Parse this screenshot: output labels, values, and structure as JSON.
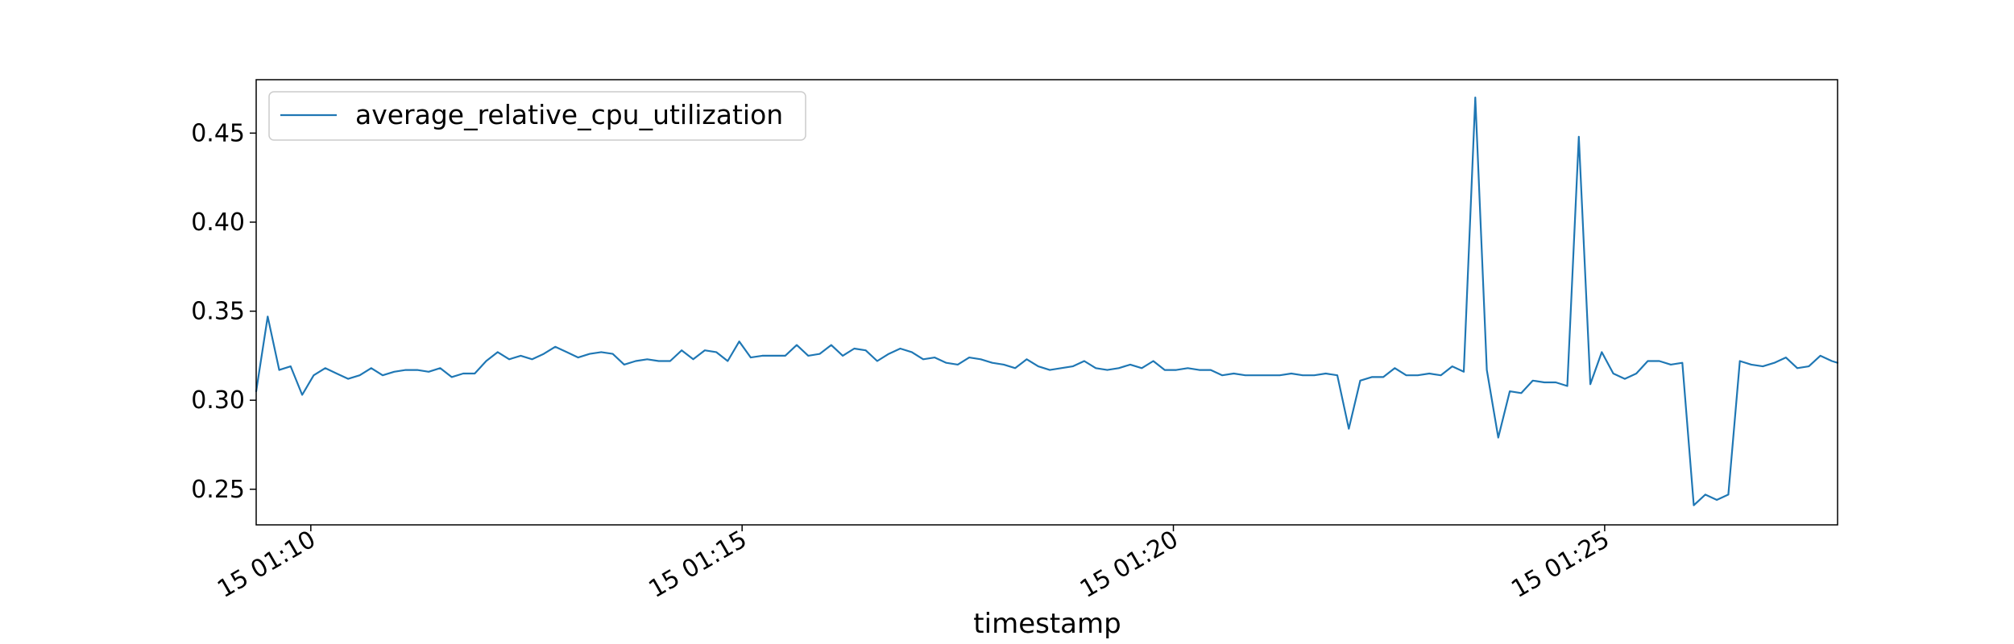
{
  "chart_data": {
    "type": "line",
    "title": "",
    "xlabel": "timestamp",
    "ylabel": "",
    "xlim": [
      "15 01:09:22",
      "15 01:27:42"
    ],
    "ylim": [
      0.23,
      0.48
    ],
    "x_ticks": [
      {
        "value": "15 01:10:00",
        "label": "15 01:10"
      },
      {
        "value": "15 01:15:00",
        "label": "15 01:15"
      },
      {
        "value": "15 01:20:00",
        "label": "15 01:20"
      },
      {
        "value": "15 01:25:00",
        "label": "15 01:25"
      }
    ],
    "y_ticks": [
      {
        "value": 0.25,
        "label": "0.25"
      },
      {
        "value": 0.3,
        "label": "0.30"
      },
      {
        "value": 0.35,
        "label": "0.35"
      },
      {
        "value": 0.4,
        "label": "0.40"
      },
      {
        "value": 0.45,
        "label": "0.45"
      }
    ],
    "grid": false,
    "legend_position": "top-left",
    "series": [
      {
        "name": "average_relative_cpu_utilization",
        "color": "#1f77b4",
        "points": [
          [
            "15 01:09:22",
            0.305
          ],
          [
            "15 01:09:30",
            0.347
          ],
          [
            "15 01:09:38",
            0.317
          ],
          [
            "15 01:09:46",
            0.319
          ],
          [
            "15 01:09:54",
            0.303
          ],
          [
            "15 01:10:02",
            0.314
          ],
          [
            "15 01:10:10",
            0.318
          ],
          [
            "15 01:10:18",
            0.315
          ],
          [
            "15 01:10:26",
            0.312
          ],
          [
            "15 01:10:34",
            0.314
          ],
          [
            "15 01:10:42",
            0.318
          ],
          [
            "15 01:10:50",
            0.314
          ],
          [
            "15 01:10:58",
            0.316
          ],
          [
            "15 01:11:06",
            0.317
          ],
          [
            "15 01:11:14",
            0.317
          ],
          [
            "15 01:11:22",
            0.316
          ],
          [
            "15 01:11:30",
            0.318
          ],
          [
            "15 01:11:38",
            0.313
          ],
          [
            "15 01:11:46",
            0.315
          ],
          [
            "15 01:11:54",
            0.315
          ],
          [
            "15 01:12:02",
            0.322
          ],
          [
            "15 01:12:10",
            0.327
          ],
          [
            "15 01:12:18",
            0.323
          ],
          [
            "15 01:12:26",
            0.325
          ],
          [
            "15 01:12:34",
            0.323
          ],
          [
            "15 01:12:42",
            0.326
          ],
          [
            "15 01:12:50",
            0.33
          ],
          [
            "15 01:12:58",
            0.327
          ],
          [
            "15 01:13:06",
            0.324
          ],
          [
            "15 01:13:14",
            0.326
          ],
          [
            "15 01:13:22",
            0.327
          ],
          [
            "15 01:13:30",
            0.326
          ],
          [
            "15 01:13:38",
            0.32
          ],
          [
            "15 01:13:46",
            0.322
          ],
          [
            "15 01:13:54",
            0.323
          ],
          [
            "15 01:14:02",
            0.322
          ],
          [
            "15 01:14:10",
            0.322
          ],
          [
            "15 01:14:18",
            0.328
          ],
          [
            "15 01:14:26",
            0.323
          ],
          [
            "15 01:14:34",
            0.328
          ],
          [
            "15 01:14:42",
            0.327
          ],
          [
            "15 01:14:50",
            0.322
          ],
          [
            "15 01:14:58",
            0.333
          ],
          [
            "15 01:15:06",
            0.324
          ],
          [
            "15 01:15:14",
            0.325
          ],
          [
            "15 01:15:22",
            0.325
          ],
          [
            "15 01:15:30",
            0.325
          ],
          [
            "15 01:15:38",
            0.331
          ],
          [
            "15 01:15:46",
            0.325
          ],
          [
            "15 01:15:54",
            0.326
          ],
          [
            "15 01:16:02",
            0.331
          ],
          [
            "15 01:16:10",
            0.325
          ],
          [
            "15 01:16:18",
            0.329
          ],
          [
            "15 01:16:26",
            0.328
          ],
          [
            "15 01:16:34",
            0.322
          ],
          [
            "15 01:16:42",
            0.326
          ],
          [
            "15 01:16:50",
            0.329
          ],
          [
            "15 01:16:58",
            0.327
          ],
          [
            "15 01:17:06",
            0.323
          ],
          [
            "15 01:17:14",
            0.324
          ],
          [
            "15 01:17:22",
            0.321
          ],
          [
            "15 01:17:30",
            0.32
          ],
          [
            "15 01:17:38",
            0.324
          ],
          [
            "15 01:17:46",
            0.323
          ],
          [
            "15 01:17:54",
            0.321
          ],
          [
            "15 01:18:02",
            0.32
          ],
          [
            "15 01:18:10",
            0.318
          ],
          [
            "15 01:18:18",
            0.323
          ],
          [
            "15 01:18:26",
            0.319
          ],
          [
            "15 01:18:34",
            0.317
          ],
          [
            "15 01:18:42",
            0.318
          ],
          [
            "15 01:18:50",
            0.319
          ],
          [
            "15 01:18:58",
            0.322
          ],
          [
            "15 01:19:06",
            0.318
          ],
          [
            "15 01:19:14",
            0.317
          ],
          [
            "15 01:19:22",
            0.318
          ],
          [
            "15 01:19:30",
            0.32
          ],
          [
            "15 01:19:38",
            0.318
          ],
          [
            "15 01:19:46",
            0.322
          ],
          [
            "15 01:19:54",
            0.317
          ],
          [
            "15 01:20:02",
            0.317
          ],
          [
            "15 01:20:10",
            0.318
          ],
          [
            "15 01:20:18",
            0.317
          ],
          [
            "15 01:20:26",
            0.317
          ],
          [
            "15 01:20:34",
            0.314
          ],
          [
            "15 01:20:42",
            0.315
          ],
          [
            "15 01:20:50",
            0.314
          ],
          [
            "15 01:20:58",
            0.314
          ],
          [
            "15 01:21:06",
            0.314
          ],
          [
            "15 01:21:14",
            0.314
          ],
          [
            "15 01:21:22",
            0.315
          ],
          [
            "15 01:21:30",
            0.314
          ],
          [
            "15 01:21:38",
            0.314
          ],
          [
            "15 01:21:46",
            0.315
          ],
          [
            "15 01:21:54",
            0.314
          ],
          [
            "15 01:22:02",
            0.284
          ],
          [
            "15 01:22:10",
            0.311
          ],
          [
            "15 01:22:18",
            0.313
          ],
          [
            "15 01:22:26",
            0.313
          ],
          [
            "15 01:22:34",
            0.318
          ],
          [
            "15 01:22:42",
            0.314
          ],
          [
            "15 01:22:50",
            0.314
          ],
          [
            "15 01:22:58",
            0.315
          ],
          [
            "15 01:23:06",
            0.314
          ],
          [
            "15 01:23:14",
            0.319
          ],
          [
            "15 01:23:22",
            0.316
          ],
          [
            "15 01:23:30",
            0.47
          ],
          [
            "15 01:23:38",
            0.317
          ],
          [
            "15 01:23:46",
            0.279
          ],
          [
            "15 01:23:54",
            0.305
          ],
          [
            "15 01:24:02",
            0.304
          ],
          [
            "15 01:24:10",
            0.311
          ],
          [
            "15 01:24:18",
            0.31
          ],
          [
            "15 01:24:26",
            0.31
          ],
          [
            "15 01:24:34",
            0.308
          ],
          [
            "15 01:24:42",
            0.448
          ],
          [
            "15 01:24:50",
            0.309
          ],
          [
            "15 01:24:58",
            0.327
          ],
          [
            "15 01:25:06",
            0.315
          ],
          [
            "15 01:25:14",
            0.312
          ],
          [
            "15 01:25:22",
            0.315
          ],
          [
            "15 01:25:30",
            0.322
          ],
          [
            "15 01:25:38",
            0.322
          ],
          [
            "15 01:25:46",
            0.32
          ],
          [
            "15 01:25:54",
            0.321
          ],
          [
            "15 01:26:02",
            0.241
          ],
          [
            "15 01:26:10",
            0.247
          ],
          [
            "15 01:26:18",
            0.244
          ],
          [
            "15 01:26:26",
            0.247
          ],
          [
            "15 01:26:34",
            0.322
          ],
          [
            "15 01:26:42",
            0.32
          ],
          [
            "15 01:26:50",
            0.319
          ],
          [
            "15 01:26:58",
            0.321
          ],
          [
            "15 01:27:06",
            0.324
          ],
          [
            "15 01:27:14",
            0.318
          ],
          [
            "15 01:27:22",
            0.319
          ],
          [
            "15 01:27:30",
            0.325
          ],
          [
            "15 01:27:38",
            0.322
          ],
          [
            "15 01:27:42",
            0.321
          ]
        ]
      }
    ]
  }
}
